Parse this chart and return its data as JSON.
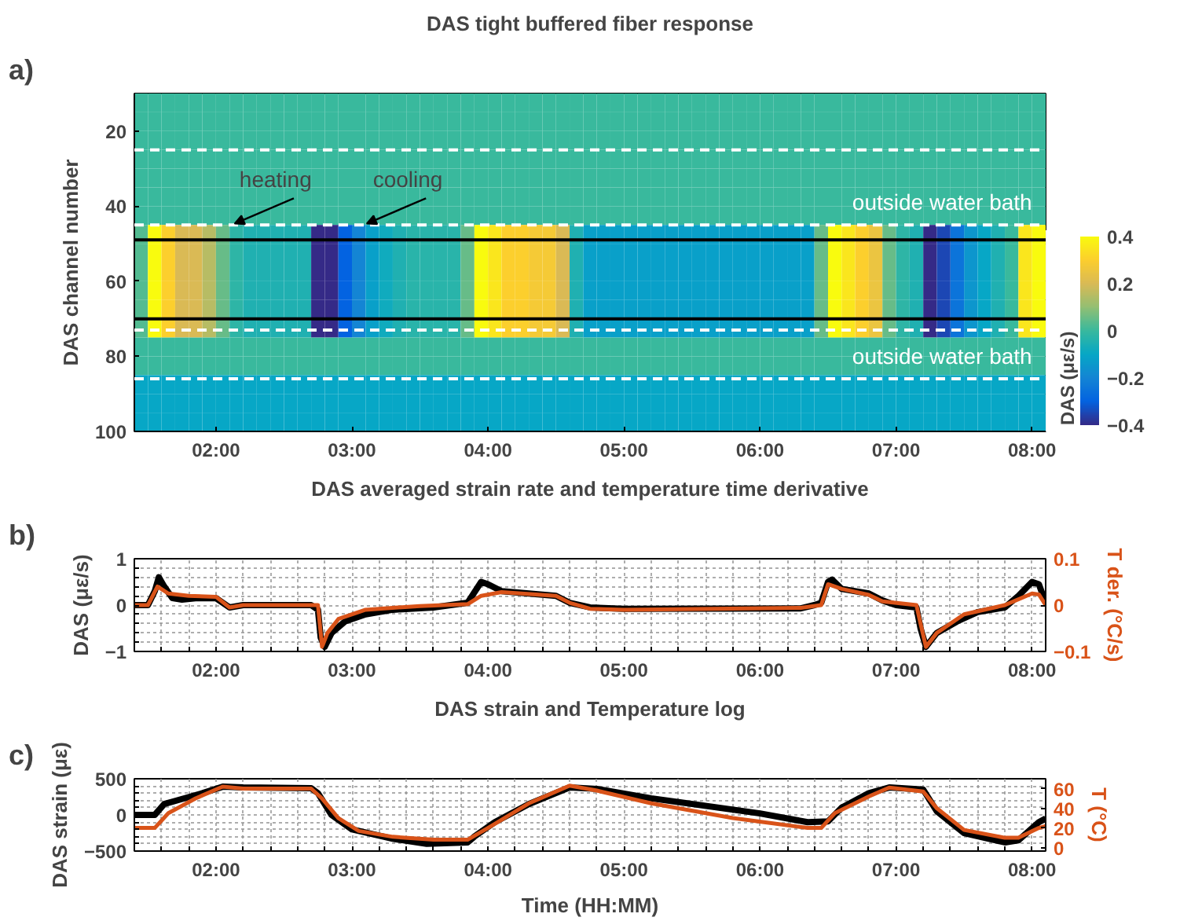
{
  "chart_data": [
    {
      "type": "heatmap",
      "title": "DAS tight buffered fiber response",
      "ylabel": "DAS channel number",
      "clabel": "DAS (με/s)",
      "annotations": [
        "a)",
        "heating",
        "cooling"
      ],
      "xlim": [
        1.4,
        8.1
      ],
      "ylim": [
        100,
        10
      ],
      "xticks": [
        {
          "value": 2,
          "label": "02:00"
        },
        {
          "value": 3,
          "label": "03:00"
        },
        {
          "value": 4,
          "label": "04:00"
        },
        {
          "value": 5,
          "label": "05:00"
        },
        {
          "value": 6,
          "label": "06:00"
        },
        {
          "value": 7,
          "label": "07:00"
        },
        {
          "value": 8,
          "label": "08:00"
        }
      ],
      "yticks": [
        20,
        40,
        60,
        80,
        100
      ],
      "clim": [
        -0.4,
        0.4
      ],
      "cticks": [
        -0.4,
        -0.2,
        0,
        0.2,
        0.4
      ],
      "x": [
        1.45,
        1.55,
        1.65,
        1.75,
        1.85,
        1.95,
        2.05,
        2.15,
        2.25,
        2.35,
        2.45,
        2.55,
        2.65,
        2.75,
        2.85,
        2.95,
        3.05,
        3.15,
        3.25,
        3.35,
        3.45,
        3.55,
        3.65,
        3.75,
        3.85,
        3.95,
        4.05,
        4.15,
        4.25,
        4.35,
        4.45,
        4.55,
        4.65,
        4.75,
        4.85,
        4.95,
        5.05,
        5.15,
        5.25,
        5.35,
        5.45,
        5.55,
        5.65,
        5.75,
        5.85,
        5.95,
        6.05,
        6.15,
        6.25,
        6.35,
        6.45,
        6.55,
        6.65,
        6.75,
        6.85,
        6.95,
        7.05,
        7.15,
        7.25,
        7.35,
        7.45,
        7.55,
        7.65,
        7.75,
        7.85,
        7.95,
        8.05
      ],
      "y": [
        12.5,
        17.5,
        22.5,
        27.5,
        32.5,
        37.5,
        42.5,
        47.5,
        52.5,
        57.5,
        62.5,
        67.5,
        72.5,
        77.5,
        82.5,
        87.5,
        92.5,
        97.5
      ],
      "cells": [
        [
          0,
          0,
          0,
          0,
          0,
          0,
          0,
          0,
          0,
          0,
          0,
          0,
          0,
          0,
          0,
          0,
          0,
          0,
          0,
          0,
          0,
          0,
          0,
          0,
          0,
          0,
          0,
          0,
          0,
          0,
          0,
          0,
          0,
          0,
          0,
          0,
          0,
          0,
          0,
          0,
          0,
          0,
          0,
          0,
          0,
          0,
          0,
          0,
          0,
          0,
          0,
          0,
          0,
          0,
          0,
          0,
          0,
          0,
          0,
          0,
          0,
          0,
          0,
          0,
          0,
          0,
          0
        ],
        [
          0,
          0,
          0,
          0,
          0,
          0,
          0,
          0,
          0,
          0,
          0,
          0,
          0,
          0,
          0,
          0,
          0,
          0,
          0,
          0,
          0,
          0,
          0,
          0,
          0,
          0,
          0,
          0,
          0,
          0,
          0,
          0,
          0,
          0,
          0,
          0,
          0,
          0,
          0,
          0,
          0,
          0,
          0,
          0,
          0,
          0,
          0,
          0,
          0,
          0,
          0,
          0,
          0,
          0,
          0,
          0,
          0,
          0,
          0,
          0,
          0,
          0,
          0,
          0,
          0,
          0,
          0
        ],
        [
          0,
          0,
          0,
          0,
          0,
          0,
          0,
          0,
          0,
          0,
          0,
          0,
          0,
          0,
          0,
          0,
          0,
          0,
          0,
          0,
          0,
          0,
          0,
          0,
          0,
          0,
          0,
          0,
          0,
          0,
          0,
          0,
          0,
          0,
          0,
          0,
          0,
          0,
          0,
          0,
          0,
          0,
          0,
          0,
          0,
          0,
          0,
          0,
          0,
          0,
          0,
          0,
          0,
          0,
          0,
          0,
          0,
          0,
          0,
          0,
          0,
          0,
          0,
          0,
          0,
          0,
          0
        ],
        [
          0,
          0,
          0,
          0,
          0,
          0,
          0,
          0,
          0,
          0,
          0,
          0,
          0,
          0,
          0,
          0,
          0,
          0,
          0,
          0,
          0,
          0,
          0,
          0,
          0,
          0,
          0,
          0,
          0,
          0,
          0,
          0,
          0,
          0,
          0,
          0,
          0,
          0,
          0,
          0,
          0,
          0,
          0,
          0,
          0,
          0,
          0,
          0,
          0,
          0,
          0,
          0,
          0,
          0,
          0,
          0,
          0,
          0,
          0,
          0,
          0,
          0,
          0,
          0,
          0,
          0,
          0
        ],
        [
          0,
          0,
          0,
          0,
          0,
          0,
          0,
          0,
          0,
          0,
          0,
          0,
          0,
          0,
          0,
          0,
          0,
          0,
          0,
          0,
          0,
          0,
          0,
          0,
          0,
          0,
          0,
          0,
          0,
          0,
          0,
          0,
          0,
          0,
          0,
          0,
          0,
          0,
          0,
          0,
          0,
          0,
          0,
          0,
          0,
          0,
          0,
          0,
          0,
          0,
          0,
          0,
          0,
          0,
          0,
          0,
          0,
          0,
          0,
          0,
          0,
          0,
          0,
          0,
          0,
          0,
          0
        ],
        [
          0,
          0,
          0,
          0,
          0,
          0,
          0,
          0,
          0,
          0,
          0,
          0,
          0,
          0,
          0,
          0,
          0,
          0,
          0,
          0,
          0,
          0,
          0,
          0,
          0,
          0,
          0,
          0,
          0,
          0,
          0,
          0,
          0,
          0,
          0,
          0,
          0,
          0,
          0,
          0,
          0,
          0,
          0,
          0,
          0,
          0,
          0,
          0,
          0,
          0,
          0,
          0,
          0,
          0,
          0,
          0,
          0,
          0,
          0,
          0,
          0,
          0,
          0,
          0,
          0,
          0,
          0
        ],
        [
          0,
          0,
          0,
          0,
          0,
          0,
          0,
          0,
          0,
          0,
          0,
          0,
          0,
          0,
          0,
          0,
          0,
          0,
          0,
          0,
          0,
          0,
          0,
          0,
          0,
          0,
          0,
          0,
          0,
          0,
          0,
          0,
          0,
          0,
          0,
          0,
          0,
          0,
          0,
          0,
          0,
          0,
          0,
          0,
          0,
          0,
          0,
          0,
          0,
          0,
          0,
          0,
          0,
          0,
          0,
          0,
          0,
          0,
          0,
          0,
          0,
          0,
          0,
          0,
          0,
          0,
          0
        ],
        [
          0.03,
          0.4,
          0.3,
          0.2,
          0.2,
          0.15,
          0.05,
          -0.02,
          -0.05,
          -0.05,
          -0.05,
          -0.05,
          -0.05,
          -0.4,
          -0.4,
          -0.3,
          -0.2,
          -0.12,
          -0.08,
          -0.05,
          -0.03,
          -0.03,
          -0.03,
          -0.03,
          0.05,
          0.4,
          0.35,
          0.3,
          0.3,
          0.28,
          0.28,
          0.2,
          -0.05,
          -0.12,
          -0.12,
          -0.12,
          -0.12,
          -0.12,
          -0.12,
          -0.12,
          -0.12,
          -0.12,
          -0.12,
          -0.12,
          -0.12,
          -0.12,
          -0.12,
          -0.12,
          -0.12,
          -0.12,
          0.05,
          0.4,
          0.35,
          0.3,
          0.25,
          0.05,
          -0.02,
          -0.05,
          -0.4,
          -0.35,
          -0.25,
          -0.15,
          -0.1,
          -0.05,
          0,
          0.35,
          0.4
        ],
        [
          0.03,
          0.4,
          0.3,
          0.2,
          0.2,
          0.15,
          0.05,
          -0.02,
          -0.05,
          -0.05,
          -0.05,
          -0.05,
          -0.05,
          -0.4,
          -0.4,
          -0.3,
          -0.2,
          -0.12,
          -0.08,
          -0.05,
          -0.03,
          -0.03,
          -0.03,
          -0.03,
          0.05,
          0.4,
          0.35,
          0.3,
          0.3,
          0.28,
          0.28,
          0.2,
          -0.05,
          -0.12,
          -0.12,
          -0.12,
          -0.12,
          -0.12,
          -0.12,
          -0.12,
          -0.12,
          -0.12,
          -0.12,
          -0.12,
          -0.12,
          -0.12,
          -0.12,
          -0.12,
          -0.12,
          -0.12,
          0.05,
          0.4,
          0.35,
          0.3,
          0.25,
          0.05,
          -0.02,
          -0.05,
          -0.4,
          -0.35,
          -0.25,
          -0.15,
          -0.1,
          -0.05,
          0,
          0.35,
          0.4
        ],
        [
          0.03,
          0.4,
          0.3,
          0.2,
          0.2,
          0.15,
          0.05,
          -0.02,
          -0.05,
          -0.05,
          -0.05,
          -0.05,
          -0.05,
          -0.4,
          -0.4,
          -0.3,
          -0.2,
          -0.12,
          -0.08,
          -0.05,
          -0.03,
          -0.03,
          -0.03,
          -0.03,
          0.05,
          0.4,
          0.35,
          0.3,
          0.3,
          0.28,
          0.28,
          0.2,
          -0.05,
          -0.12,
          -0.12,
          -0.12,
          -0.12,
          -0.12,
          -0.12,
          -0.12,
          -0.12,
          -0.12,
          -0.12,
          -0.12,
          -0.12,
          -0.12,
          -0.12,
          -0.12,
          -0.12,
          -0.12,
          0.05,
          0.4,
          0.35,
          0.3,
          0.25,
          0.05,
          -0.02,
          -0.05,
          -0.4,
          -0.35,
          -0.25,
          -0.15,
          -0.1,
          -0.05,
          0,
          0.35,
          0.4
        ],
        [
          0.03,
          0.4,
          0.3,
          0.2,
          0.2,
          0.15,
          0.05,
          -0.02,
          -0.05,
          -0.05,
          -0.05,
          -0.05,
          -0.05,
          -0.4,
          -0.4,
          -0.3,
          -0.2,
          -0.12,
          -0.08,
          -0.05,
          -0.03,
          -0.03,
          -0.03,
          -0.03,
          0.05,
          0.4,
          0.35,
          0.3,
          0.3,
          0.28,
          0.28,
          0.2,
          -0.05,
          -0.12,
          -0.12,
          -0.12,
          -0.12,
          -0.12,
          -0.12,
          -0.12,
          -0.12,
          -0.12,
          -0.12,
          -0.12,
          -0.12,
          -0.12,
          -0.12,
          -0.12,
          -0.12,
          -0.12,
          0.05,
          0.4,
          0.35,
          0.3,
          0.25,
          0.05,
          -0.02,
          -0.05,
          -0.4,
          -0.35,
          -0.25,
          -0.15,
          -0.1,
          -0.05,
          0,
          0.35,
          0.4
        ],
        [
          0.03,
          0.4,
          0.3,
          0.2,
          0.2,
          0.15,
          0.05,
          -0.02,
          -0.05,
          -0.05,
          -0.05,
          -0.05,
          -0.05,
          -0.4,
          -0.4,
          -0.3,
          -0.2,
          -0.12,
          -0.08,
          -0.05,
          -0.03,
          -0.03,
          -0.03,
          -0.03,
          0.05,
          0.4,
          0.35,
          0.3,
          0.3,
          0.28,
          0.28,
          0.2,
          -0.05,
          -0.12,
          -0.12,
          -0.12,
          -0.12,
          -0.12,
          -0.12,
          -0.12,
          -0.12,
          -0.12,
          -0.12,
          -0.12,
          -0.12,
          -0.12,
          -0.12,
          -0.12,
          -0.12,
          -0.12,
          0.05,
          0.4,
          0.35,
          0.3,
          0.25,
          0.05,
          -0.02,
          -0.05,
          -0.4,
          -0.35,
          -0.25,
          -0.15,
          -0.1,
          -0.05,
          0,
          0.35,
          0.4
        ],
        [
          0.03,
          0.4,
          0.3,
          0.2,
          0.2,
          0.15,
          0.05,
          -0.02,
          -0.05,
          -0.05,
          -0.05,
          -0.05,
          -0.05,
          -0.4,
          -0.4,
          -0.3,
          -0.2,
          -0.12,
          -0.08,
          -0.05,
          -0.03,
          -0.03,
          -0.03,
          -0.03,
          0.05,
          0.4,
          0.35,
          0.3,
          0.3,
          0.28,
          0.28,
          0.2,
          -0.05,
          -0.12,
          -0.12,
          -0.12,
          -0.12,
          -0.12,
          -0.12,
          -0.12,
          -0.12,
          -0.12,
          -0.12,
          -0.12,
          -0.12,
          -0.12,
          -0.12,
          -0.12,
          -0.12,
          -0.12,
          0.05,
          0.4,
          0.35,
          0.3,
          0.25,
          0.05,
          -0.02,
          -0.05,
          -0.4,
          -0.35,
          -0.25,
          -0.15,
          -0.1,
          -0.05,
          0,
          0.35,
          0.4
        ],
        [
          0,
          0,
          0,
          0,
          0,
          0,
          0,
          0,
          0,
          0,
          0,
          0,
          0,
          0,
          0,
          0,
          0,
          0,
          0,
          0,
          0,
          0,
          0,
          0,
          0,
          0,
          0,
          0,
          0,
          0,
          0,
          0,
          0,
          0,
          0,
          0,
          0,
          0,
          0,
          0,
          0,
          0,
          0,
          0,
          0,
          0,
          0,
          0,
          0,
          0,
          0,
          0,
          0,
          0,
          0,
          0,
          0,
          0,
          0,
          0,
          0,
          0,
          0,
          0,
          0,
          0,
          0
        ],
        [
          0,
          0,
          0,
          0,
          0,
          0,
          0,
          0,
          0,
          0,
          0,
          0,
          0,
          0,
          0,
          0,
          0,
          0,
          0,
          0,
          0,
          0,
          0,
          0,
          0,
          0,
          0,
          0,
          0,
          0,
          0,
          0,
          0,
          0,
          0,
          0,
          0,
          0,
          0,
          0,
          0,
          0,
          0,
          0,
          0,
          0,
          0,
          0,
          0,
          0,
          0,
          0,
          0,
          0,
          0,
          0,
          0,
          0,
          0,
          0,
          0,
          0,
          0,
          0,
          0,
          0,
          0
        ],
        [
          -0.1,
          -0.1,
          -0.1,
          -0.1,
          -0.1,
          -0.1,
          -0.1,
          -0.1,
          -0.1,
          -0.1,
          -0.1,
          -0.1,
          -0.1,
          -0.1,
          -0.1,
          -0.1,
          -0.1,
          -0.1,
          -0.1,
          -0.1,
          -0.1,
          -0.1,
          -0.1,
          -0.1,
          -0.1,
          -0.1,
          -0.1,
          -0.1,
          -0.1,
          -0.1,
          -0.1,
          -0.1,
          -0.1,
          -0.1,
          -0.1,
          -0.1,
          -0.1,
          -0.1,
          -0.1,
          -0.1,
          -0.1,
          -0.1,
          -0.1,
          -0.1,
          -0.1,
          -0.1,
          -0.1,
          -0.1,
          -0.1,
          -0.1,
          -0.1,
          -0.1,
          -0.1,
          -0.1,
          -0.1,
          -0.1,
          -0.1,
          -0.1,
          -0.1,
          -0.1,
          -0.1,
          -0.1,
          -0.1,
          -0.1,
          -0.1,
          -0.1,
          -0.1
        ],
        [
          -0.1,
          -0.1,
          -0.1,
          -0.1,
          -0.1,
          -0.1,
          -0.1,
          -0.1,
          -0.1,
          -0.1,
          -0.1,
          -0.1,
          -0.1,
          -0.1,
          -0.1,
          -0.1,
          -0.1,
          -0.1,
          -0.1,
          -0.1,
          -0.1,
          -0.1,
          -0.1,
          -0.1,
          -0.1,
          -0.1,
          -0.1,
          -0.1,
          -0.1,
          -0.1,
          -0.1,
          -0.1,
          -0.1,
          -0.1,
          -0.1,
          -0.1,
          -0.1,
          -0.1,
          -0.1,
          -0.1,
          -0.1,
          -0.1,
          -0.1,
          -0.1,
          -0.1,
          -0.1,
          -0.1,
          -0.1,
          -0.1,
          -0.1,
          -0.1,
          -0.1,
          -0.1,
          -0.1,
          -0.1,
          -0.1,
          -0.1,
          -0.1,
          -0.1,
          -0.1,
          -0.1,
          -0.1,
          -0.1,
          -0.1,
          -0.1,
          -0.1,
          -0.1
        ],
        [
          -0.1,
          -0.1,
          -0.1,
          -0.1,
          -0.1,
          -0.1,
          -0.1,
          -0.1,
          -0.1,
          -0.1,
          -0.1,
          -0.1,
          -0.1,
          -0.1,
          -0.1,
          -0.1,
          -0.1,
          -0.1,
          -0.1,
          -0.1,
          -0.1,
          -0.1,
          -0.1,
          -0.1,
          -0.1,
          -0.1,
          -0.1,
          -0.1,
          -0.1,
          -0.1,
          -0.1,
          -0.1,
          -0.1,
          -0.1,
          -0.1,
          -0.1,
          -0.1,
          -0.1,
          -0.1,
          -0.1,
          -0.1,
          -0.1,
          -0.1,
          -0.1,
          -0.1,
          -0.1,
          -0.1,
          -0.1,
          -0.1,
          -0.1,
          -0.1,
          -0.1,
          -0.1,
          -0.1,
          -0.1,
          -0.1,
          -0.1,
          -0.1,
          -0.1,
          -0.1,
          -0.1,
          -0.1,
          -0.1,
          -0.1,
          -0.1,
          -0.1,
          -0.1
        ]
      ],
      "ref_lines": [
        {
          "axis": "y",
          "value": 49,
          "color": "#000000",
          "line_style": "solid"
        },
        {
          "axis": "y",
          "value": 70,
          "color": "#000000",
          "line_style": "solid"
        },
        {
          "axis": "y",
          "value": 25,
          "color": "#ffffff",
          "line_style": "dashed"
        },
        {
          "axis": "y",
          "value": 45,
          "color": "#ffffff",
          "line_style": "dashed",
          "label": "outside water bath"
        },
        {
          "axis": "y",
          "value": 73,
          "color": "#ffffff",
          "line_style": "dashed"
        },
        {
          "axis": "y",
          "value": 86,
          "color": "#ffffff",
          "line_style": "dashed",
          "label": "outside water bath"
        }
      ]
    },
    {
      "type": "line",
      "title": "DAS averaged strain rate and temperature time derivative",
      "ylabel": "DAS (με/s)",
      "y2label": "T der. (°C/s)",
      "annotations": [
        "b)"
      ],
      "grid": true,
      "xlim": [
        1.4,
        8.1
      ],
      "ylim": [
        -1,
        1
      ],
      "y2lim": [
        -0.1,
        0.1
      ],
      "xticks": [
        {
          "value": 1.4,
          "label": null
        },
        {
          "value": 1.6,
          "label": null
        },
        {
          "value": 1.8,
          "label": null
        },
        {
          "value": 2,
          "label": "02:00"
        },
        {
          "value": 2.2,
          "label": null
        },
        {
          "value": 2.4,
          "label": null
        },
        {
          "value": 2.6,
          "label": null
        },
        {
          "value": 2.8,
          "label": null
        },
        {
          "value": 3,
          "label": "03:00"
        },
        {
          "value": 3.2,
          "label": null
        },
        {
          "value": 3.4,
          "label": null
        },
        {
          "value": 3.6,
          "label": null
        },
        {
          "value": 3.8,
          "label": null
        },
        {
          "value": 4,
          "label": "04:00"
        },
        {
          "value": 4.2,
          "label": null
        },
        {
          "value": 4.4,
          "label": null
        },
        {
          "value": 4.6,
          "label": null
        },
        {
          "value": 4.8,
          "label": null
        },
        {
          "value": 5,
          "label": "05:00"
        },
        {
          "value": 5.2,
          "label": null
        },
        {
          "value": 5.4,
          "label": null
        },
        {
          "value": 5.6,
          "label": null
        },
        {
          "value": 5.8,
          "label": null
        },
        {
          "value": 6,
          "label": "06:00"
        },
        {
          "value": 6.2,
          "label": null
        },
        {
          "value": 6.4,
          "label": null
        },
        {
          "value": 6.6,
          "label": null
        },
        {
          "value": 6.8,
          "label": null
        },
        {
          "value": 7,
          "label": "07:00"
        },
        {
          "value": 7.2,
          "label": null
        },
        {
          "value": 7.4,
          "label": null
        },
        {
          "value": 7.6,
          "label": null
        },
        {
          "value": 7.8,
          "label": null
        },
        {
          "value": 8,
          "label": "08:00"
        }
      ],
      "yticks": [
        -1,
        {
          "value": -0.8,
          "label": null
        },
        {
          "value": -0.6,
          "label": null
        },
        {
          "value": -0.4,
          "label": null
        },
        {
          "value": -0.2,
          "label": null
        },
        0,
        {
          "value": 0.2,
          "label": null
        },
        {
          "value": 0.4,
          "label": null
        },
        {
          "value": 0.6,
          "label": null
        },
        {
          "value": 0.8,
          "label": null
        },
        1
      ],
      "y2ticks": [
        -0.1,
        0,
        0.1
      ],
      "series": [
        {
          "color": "#000000",
          "x": [
            1.4,
            1.5,
            1.55,
            1.58,
            1.62,
            1.68,
            1.75,
            1.85,
            2.0,
            2.1,
            2.2,
            2.7,
            2.75,
            2.77,
            2.8,
            2.85,
            2.95,
            3.1,
            3.3,
            3.6,
            3.85,
            3.95,
            4.0,
            4.1,
            4.5,
            4.6,
            4.75,
            5.0,
            6.3,
            6.4,
            6.45,
            6.5,
            6.53,
            6.6,
            6.8,
            6.9,
            7.0,
            7.15,
            7.18,
            7.22,
            7.3,
            7.45,
            7.6,
            7.8,
            7.9,
            8.0,
            8.05,
            8.1
          ],
          "values": [
            0,
            0,
            0.3,
            0.6,
            0.4,
            0.15,
            0.12,
            0.15,
            0.15,
            -0.05,
            0,
            0,
            -0.1,
            -0.7,
            -0.9,
            -0.6,
            -0.35,
            -0.2,
            -0.1,
            -0.05,
            0.05,
            0.5,
            0.45,
            0.3,
            0.2,
            0.05,
            -0.05,
            -0.08,
            -0.07,
            0,
            0.05,
            0.5,
            0.55,
            0.35,
            0.25,
            0.1,
            0,
            -0.05,
            -0.5,
            -0.9,
            -0.6,
            -0.35,
            -0.15,
            -0.05,
            0.2,
            0.5,
            0.45,
            0.05
          ]
        },
        {
          "color": "#d95319",
          "axis": "y2",
          "x": [
            1.4,
            1.5,
            1.57,
            1.65,
            1.8,
            2.0,
            2.1,
            2.2,
            2.75,
            2.78,
            2.82,
            2.9,
            3.1,
            3.5,
            3.85,
            3.95,
            4.1,
            4.5,
            4.6,
            4.75,
            5.0,
            6.3,
            6.45,
            6.5,
            6.6,
            6.8,
            6.9,
            7.15,
            7.18,
            7.22,
            7.3,
            7.5,
            7.8,
            8.0,
            8.05,
            8.1
          ],
          "values": [
            0,
            0,
            0.04,
            0.025,
            0.02,
            0.018,
            -0.005,
            0,
            0,
            -0.09,
            -0.06,
            -0.03,
            -0.01,
            -0.002,
            0.002,
            0.02,
            0.028,
            0.02,
            0.005,
            -0.008,
            -0.01,
            -0.006,
            0,
            0.045,
            0.035,
            0.022,
            0.008,
            0,
            -0.04,
            -0.09,
            -0.06,
            -0.02,
            0,
            0.025,
            0.023,
            0
          ]
        }
      ]
    },
    {
      "type": "line",
      "title": "DAS strain and Temperature log",
      "xlabel": "Time (HH:MM)",
      "ylabel": "DAS strain (με)",
      "y2label": "T (°C)",
      "annotations": [
        "c)"
      ],
      "grid": true,
      "xlim": [
        1.4,
        8.1
      ],
      "ylim": [
        -500,
        500
      ],
      "y2lim": [
        -3.5,
        70
      ],
      "xticks": [
        {
          "value": 1.4,
          "label": null
        },
        {
          "value": 1.6,
          "label": null
        },
        {
          "value": 1.8,
          "label": null
        },
        {
          "value": 2,
          "label": "02:00"
        },
        {
          "value": 2.2,
          "label": null
        },
        {
          "value": 2.4,
          "label": null
        },
        {
          "value": 2.6,
          "label": null
        },
        {
          "value": 2.8,
          "label": null
        },
        {
          "value": 3,
          "label": "03:00"
        },
        {
          "value": 3.2,
          "label": null
        },
        {
          "value": 3.4,
          "label": null
        },
        {
          "value": 3.6,
          "label": null
        },
        {
          "value": 3.8,
          "label": null
        },
        {
          "value": 4,
          "label": "04:00"
        },
        {
          "value": 4.2,
          "label": null
        },
        {
          "value": 4.4,
          "label": null
        },
        {
          "value": 4.6,
          "label": null
        },
        {
          "value": 4.8,
          "label": null
        },
        {
          "value": 5,
          "label": "05:00"
        },
        {
          "value": 5.2,
          "label": null
        },
        {
          "value": 5.4,
          "label": null
        },
        {
          "value": 5.6,
          "label": null
        },
        {
          "value": 5.8,
          "label": null
        },
        {
          "value": 6,
          "label": "06:00"
        },
        {
          "value": 6.2,
          "label": null
        },
        {
          "value": 6.4,
          "label": null
        },
        {
          "value": 6.6,
          "label": null
        },
        {
          "value": 6.8,
          "label": null
        },
        {
          "value": 7,
          "label": "07:00"
        },
        {
          "value": 7.2,
          "label": null
        },
        {
          "value": 7.4,
          "label": null
        },
        {
          "value": 7.6,
          "label": null
        },
        {
          "value": 7.8,
          "label": null
        },
        {
          "value": 8,
          "label": "08:00"
        }
      ],
      "yticks": [
        -500,
        {
          "value": -400,
          "label": null
        },
        {
          "value": -300,
          "label": null
        },
        {
          "value": -200,
          "label": null
        },
        {
          "value": -100,
          "label": null
        },
        0,
        {
          "value": 100,
          "label": null
        },
        {
          "value": 200,
          "label": null
        },
        {
          "value": 300,
          "label": null
        },
        {
          "value": 400,
          "label": null
        },
        500
      ],
      "y2ticks": [
        0,
        20,
        40,
        60
      ],
      "series": [
        {
          "color": "#000000",
          "x": [
            1.4,
            1.55,
            1.62,
            1.75,
            1.9,
            2.05,
            2.2,
            2.7,
            2.75,
            2.85,
            3.0,
            3.3,
            3.55,
            3.85,
            3.9,
            4.05,
            4.3,
            4.6,
            4.8,
            5.2,
            6.0,
            6.35,
            6.5,
            6.6,
            6.8,
            6.95,
            7.2,
            7.3,
            7.5,
            7.8,
            7.9,
            8.05,
            8.1
          ],
          "values": [
            0,
            0,
            150,
            220,
            300,
            390,
            380,
            370,
            300,
            0,
            -200,
            -330,
            -400,
            -380,
            -300,
            -100,
            150,
            380,
            360,
            230,
            20,
            -100,
            -90,
            100,
            300,
            380,
            350,
            50,
            -250,
            -380,
            -350,
            -100,
            -50
          ]
        },
        {
          "color": "#d95319",
          "axis": "y2",
          "x": [
            1.4,
            1.55,
            1.65,
            1.85,
            2.05,
            2.2,
            2.7,
            2.78,
            2.9,
            3.05,
            3.3,
            3.6,
            3.85,
            4.0,
            4.3,
            4.6,
            4.8,
            5.2,
            5.8,
            6.35,
            6.45,
            6.55,
            6.8,
            6.95,
            7.2,
            7.3,
            7.5,
            7.8,
            7.9,
            8.05,
            8.1
          ],
          "values": [
            20,
            20,
            35,
            50,
            62,
            60,
            60,
            50,
            30,
            17,
            11,
            8,
            8,
            20,
            45,
            63,
            58,
            45,
            30,
            20,
            20,
            35,
            52,
            61,
            57,
            40,
            18,
            10,
            10,
            20,
            22
          ]
        }
      ]
    }
  ]
}
